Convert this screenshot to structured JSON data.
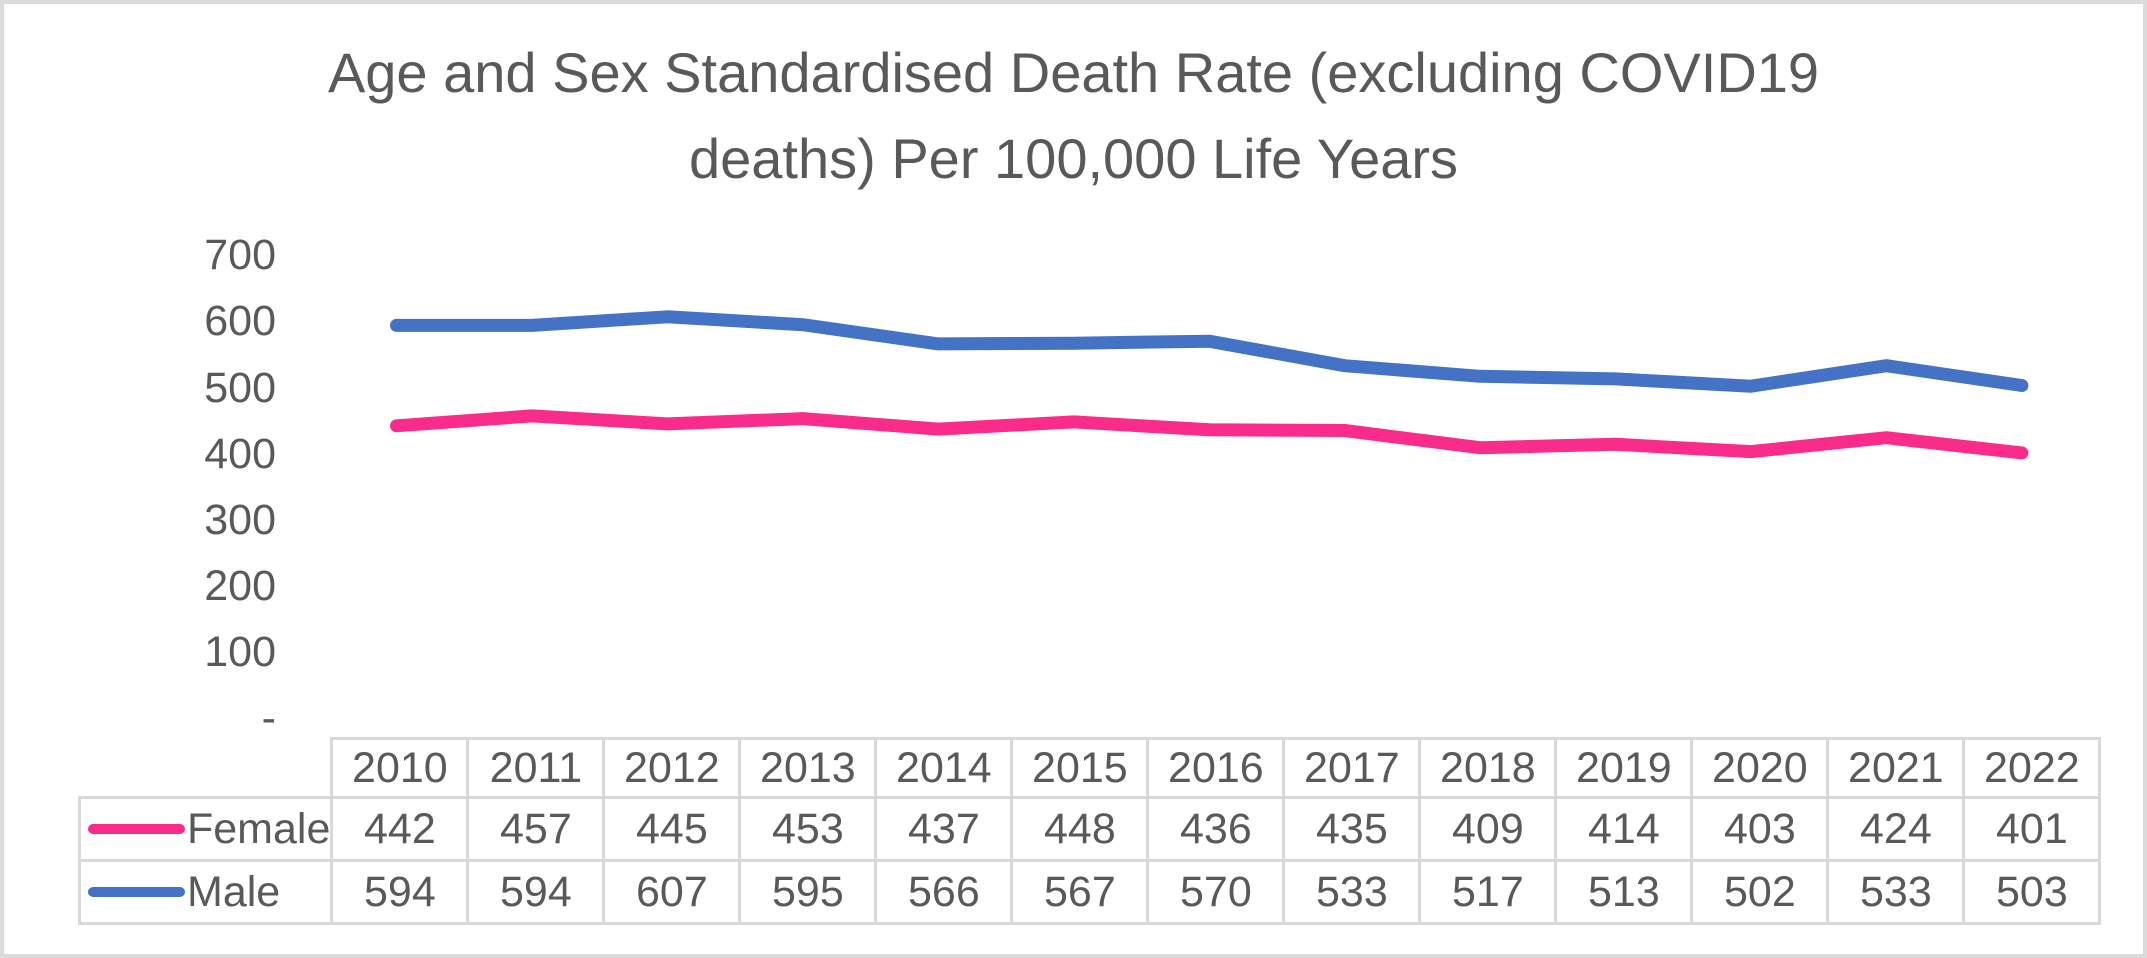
{
  "chart_data": {
    "type": "line",
    "title": "Age and Sex Standardised Death Rate (excluding COVID19 deaths) Per 100,000 Life Years",
    "title_lines": [
      "Age and Sex Standardised Death Rate (excluding COVID19",
      "deaths) Per 100,000 Life Years"
    ],
    "categories": [
      "2010",
      "2011",
      "2012",
      "2013",
      "2014",
      "2015",
      "2016",
      "2017",
      "2018",
      "2019",
      "2020",
      "2021",
      "2022"
    ],
    "series": [
      {
        "name": "Female",
        "color": "#f92c8b",
        "values": [
          442,
          457,
          445,
          453,
          437,
          448,
          436,
          435,
          409,
          414,
          403,
          424,
          401
        ]
      },
      {
        "name": "Male",
        "color": "#4472c4",
        "values": [
          594,
          594,
          607,
          595,
          566,
          567,
          570,
          533,
          517,
          513,
          502,
          533,
          503
        ]
      }
    ],
    "y_axis": {
      "min": 0,
      "max": 700,
      "tick_interval": 100,
      "tick_labels": [
        "-",
        "100",
        "200",
        "300",
        "400",
        "500",
        "600",
        "700"
      ]
    },
    "xlabel": "",
    "ylabel": "",
    "grid": false,
    "markers": false,
    "legend_position": "data-table-left",
    "data_table_shown": true
  },
  "colors": {
    "text": "#595959",
    "table_border": "#d9d9d9",
    "frame_border": "#dbdbdb",
    "background": "#ffffff",
    "female_line": "#f92c8b",
    "male_line": "#4472c4"
  }
}
